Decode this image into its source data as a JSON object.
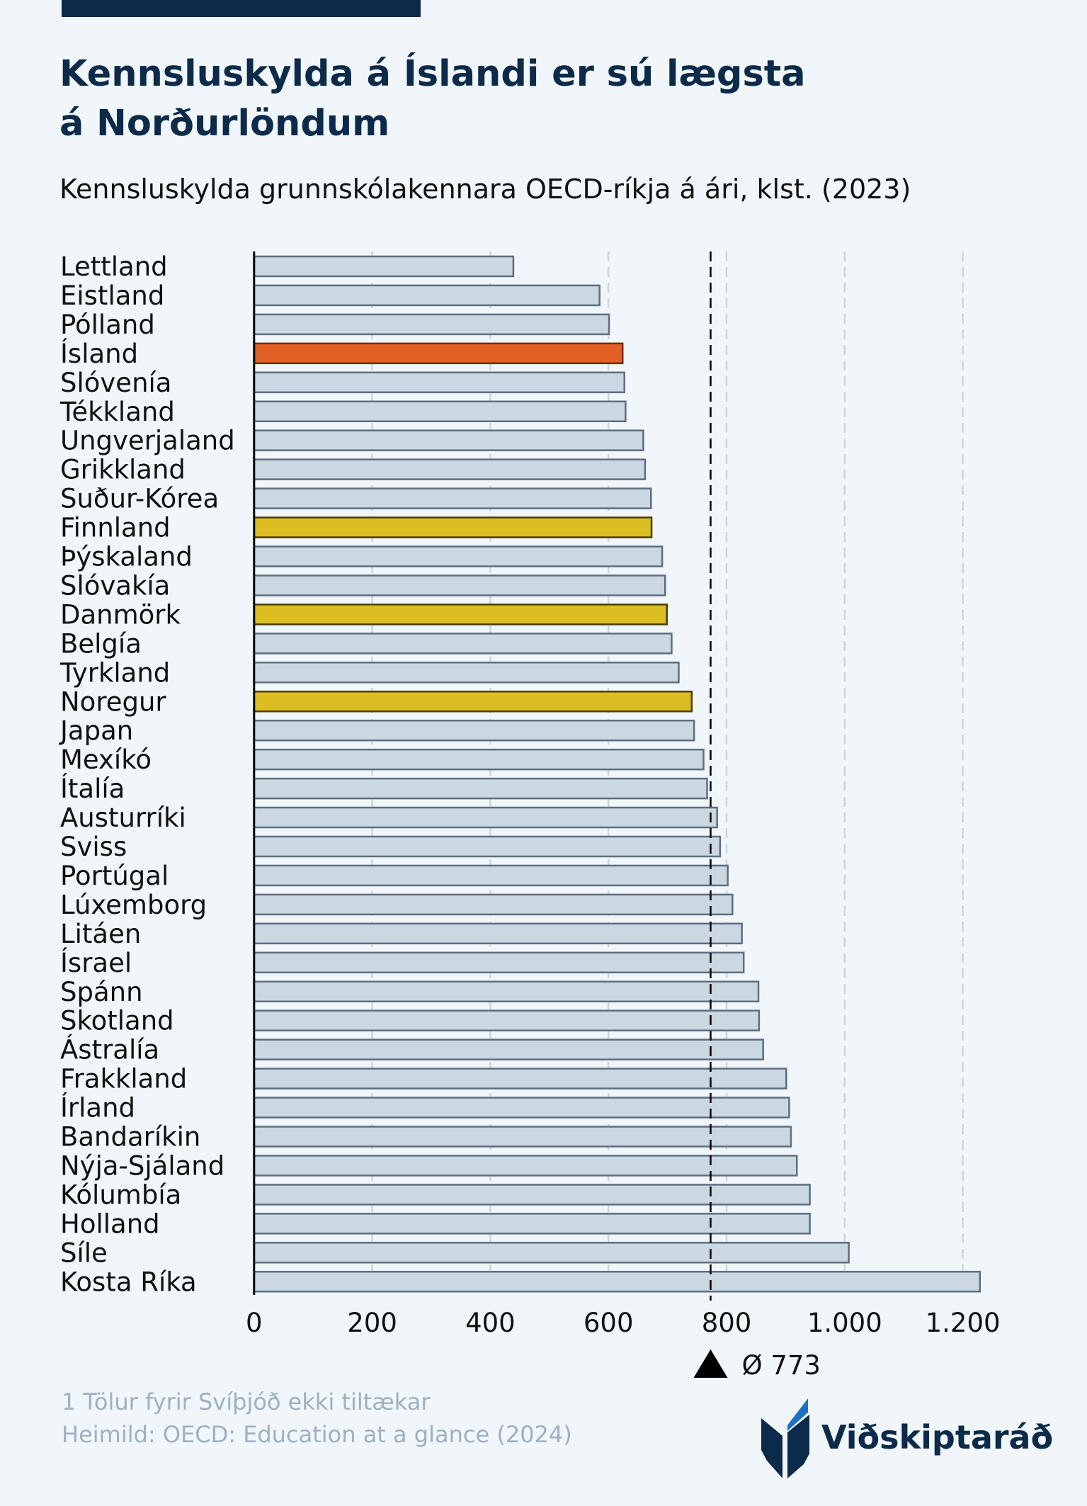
{
  "header": {
    "title_line1": "Kennsluskylda á Íslandi er sú lægsta",
    "title_line2": "á Norðurlöndum",
    "subtitle": "Kennsluskylda grunnskólakennara OECD-ríkja á ári, klst. (2023)"
  },
  "footer": {
    "note": "1 Tölur fyrir Svíþjóð ekki tiltækar",
    "source": "Heimild: OECD: Education at a glance (2024)",
    "logo_text": "Viðskiptaráð"
  },
  "colors": {
    "default": "#cbd8e1",
    "default_stroke": "#5d6e83",
    "iceland": "#e06025",
    "iceland_stroke": "#7a2a0a",
    "nordic": "#dcbd22",
    "nordic_stroke": "#4a3d00",
    "mean": "#000000",
    "grid": "#cfd6dc"
  },
  "chart_data": {
    "type": "bar",
    "orientation": "horizontal",
    "title": "Kennsluskylda á Íslandi er sú lægsta á Norðurlöndum",
    "xlabel": "",
    "ylabel": "",
    "xlim": [
      0,
      1230
    ],
    "xticks": [
      0,
      200,
      400,
      600,
      800,
      1000,
      1200
    ],
    "xtick_labels": [
      "0",
      "200",
      "400",
      "600",
      "800",
      "1.000",
      "1.200"
    ],
    "grid": true,
    "mean": {
      "value": 773,
      "label": "Ø 773"
    },
    "categories": [
      "Lettland",
      "Eistland",
      "Pólland",
      "Ísland",
      "Slóvenía",
      "Tékkland",
      "Ungverjaland",
      "Grikkland",
      "Suður-Kórea",
      "Finnland",
      "Þýskaland",
      "Slóvakía",
      "Danmörk",
      "Belgía",
      "Tyrkland",
      "Noregur",
      "Japan",
      "Mexíkó",
      "Ítalía",
      "Austurríki",
      "Sviss",
      "Portúgal",
      "Lúxemborg",
      "Litáen",
      "Ísrael",
      "Spánn",
      "Skotland",
      "Ástralía",
      "Frakkland",
      "Írland",
      "Bandaríkin",
      "Nýja-Sjáland",
      "Kólumbía",
      "Holland",
      "Síle",
      "Kosta Ríka"
    ],
    "values": [
      439,
      585,
      601,
      624,
      627,
      629,
      659,
      662,
      672,
      673,
      691,
      696,
      699,
      707,
      719,
      741,
      745,
      761,
      767,
      784,
      789,
      802,
      810,
      826,
      829,
      854,
      855,
      862,
      901,
      906,
      909,
      919,
      941,
      941,
      1007,
      1229
    ],
    "highlight": {
      "Ísland": "iceland",
      "Finnland": "nordic",
      "Danmörk": "nordic",
      "Noregur": "nordic"
    }
  }
}
